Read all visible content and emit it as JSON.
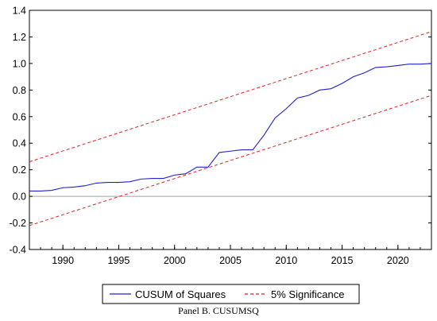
{
  "caption": "Panel B. CUSUMSQ",
  "chart_data": {
    "type": "line",
    "title": "",
    "xlabel": "",
    "ylabel": "",
    "xlim": [
      1987,
      2023
    ],
    "ylim": [
      -0.4,
      1.4
    ],
    "x_ticks": [
      1990,
      1995,
      2000,
      2005,
      2010,
      2015,
      2020
    ],
    "y_ticks": [
      -0.4,
      -0.2,
      0.0,
      0.2,
      0.4,
      0.6,
      0.8,
      1.0,
      1.2,
      1.4
    ],
    "y_tick_labels": [
      "-0.4",
      "-0.2",
      "0.0",
      "0.2",
      "0.4",
      "0.6",
      "0.8",
      "1.0",
      "1.2",
      "1.4"
    ],
    "zero_line": true,
    "grid": false,
    "legend_position": "bottom-center",
    "series": [
      {
        "name": "CUSUM of Squares",
        "color": "#2020d0",
        "style": "solid",
        "x": [
          1987,
          1988,
          1989,
          1990,
          1991,
          1992,
          1993,
          1994,
          1995,
          1996,
          1997,
          1998,
          1999,
          2000,
          2001,
          2002,
          2003,
          2004,
          2005,
          2006,
          2007,
          2008,
          2009,
          2010,
          2011,
          2012,
          2013,
          2014,
          2015,
          2016,
          2017,
          2018,
          2019,
          2020,
          2021,
          2022,
          2023
        ],
        "y": [
          0.04,
          0.04,
          0.045,
          0.065,
          0.07,
          0.08,
          0.1,
          0.105,
          0.105,
          0.11,
          0.13,
          0.135,
          0.135,
          0.16,
          0.17,
          0.22,
          0.22,
          0.33,
          0.34,
          0.35,
          0.35,
          0.46,
          0.59,
          0.66,
          0.74,
          0.76,
          0.8,
          0.81,
          0.85,
          0.9,
          0.93,
          0.97,
          0.975,
          0.985,
          0.995,
          0.995,
          1.0
        ]
      },
      {
        "name": "5% Significance",
        "color": "#e02020",
        "style": "dashed",
        "x": [
          1987,
          2023
        ],
        "y": [
          0.26,
          1.24
        ]
      },
      {
        "name": "5% Significance",
        "color": "#e02020",
        "style": "dashed",
        "x": [
          1987,
          2023
        ],
        "y": [
          -0.22,
          0.76
        ]
      }
    ]
  }
}
